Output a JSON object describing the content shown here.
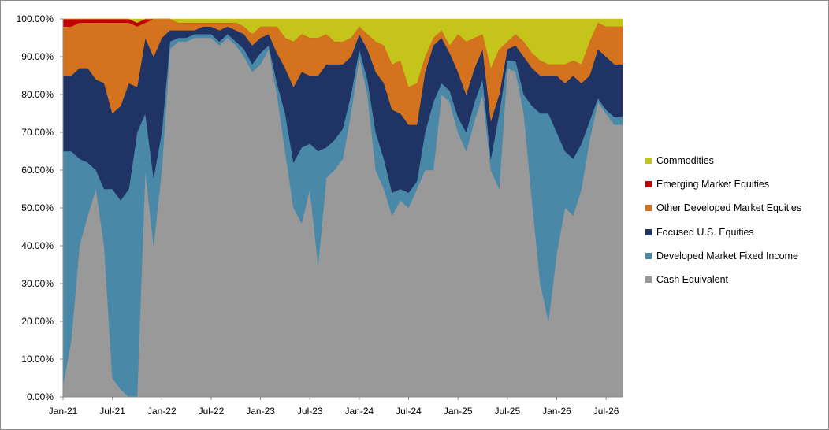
{
  "chart_data": {
    "type": "area",
    "stacked": true,
    "percent_axis": true,
    "ylim": [
      0,
      100
    ],
    "y_ticks": [
      0,
      10,
      20,
      30,
      40,
      50,
      60,
      70,
      80,
      90,
      100
    ],
    "y_tick_labels": [
      "0.00%",
      "10.00%",
      "20.00%",
      "30.00%",
      "40.00%",
      "50.00%",
      "60.00%",
      "70.00%",
      "80.00%",
      "90.00%",
      "100.00%"
    ],
    "x_tick_labels": [
      "Jan-21",
      "Jul-21",
      "Jan-22",
      "Jul-22",
      "Jan-23",
      "Jul-23",
      "Jan-24",
      "Jul-24",
      "Jan-25",
      "Jul-25",
      "Jan-26",
      "Jul-26"
    ],
    "x_start": "2021-01",
    "x_end": "2026-09",
    "x": [
      "2021-01",
      "2021-02",
      "2021-03",
      "2021-04",
      "2021-05",
      "2021-06",
      "2021-07",
      "2021-08",
      "2021-09",
      "2021-10",
      "2021-11",
      "2021-12",
      "2022-01",
      "2022-02",
      "2022-03",
      "2022-04",
      "2022-05",
      "2022-06",
      "2022-07",
      "2022-08",
      "2022-09",
      "2022-10",
      "2022-11",
      "2022-12",
      "2023-01",
      "2023-02",
      "2023-03",
      "2023-04",
      "2023-05",
      "2023-06",
      "2023-07",
      "2023-08",
      "2023-09",
      "2023-10",
      "2023-11",
      "2023-12",
      "2024-01",
      "2024-02",
      "2024-03",
      "2024-04",
      "2024-05",
      "2024-06",
      "2024-07",
      "2024-08",
      "2024-09",
      "2024-10",
      "2024-11",
      "2024-12",
      "2025-01",
      "2025-02",
      "2025-03",
      "2025-04",
      "2025-05",
      "2025-06",
      "2025-07",
      "2025-08",
      "2025-09",
      "2025-10",
      "2025-11",
      "2025-12",
      "2026-01",
      "2026-02",
      "2026-03",
      "2026-04",
      "2026-05",
      "2026-06",
      "2026-07",
      "2026-08",
      "2026-09"
    ],
    "legend_position": "right",
    "grid": false,
    "series": [
      {
        "name": "Cash Equivalent",
        "color": "#999999",
        "values": [
          3,
          15,
          40,
          48,
          55,
          40,
          5,
          2,
          0,
          0,
          60,
          40,
          60,
          92,
          94,
          94,
          95,
          95,
          95,
          93,
          95,
          93,
          90,
          86,
          88,
          92,
          80,
          65,
          50,
          46,
          55,
          35,
          58,
          60,
          63,
          75,
          90,
          80,
          60,
          55,
          48,
          52,
          50,
          55,
          60,
          60,
          80,
          78,
          70,
          65,
          73,
          80,
          60,
          55,
          87,
          86,
          75,
          52,
          30,
          20,
          38,
          50,
          48,
          55,
          68,
          78,
          75,
          72,
          72
        ]
      },
      {
        "name": "Developed Market Fixed Income",
        "color": "#4a88a8",
        "values": [
          62,
          50,
          23,
          14,
          5,
          15,
          50,
          50,
          55,
          70,
          15,
          18,
          10,
          2,
          1,
          1,
          1,
          1,
          1,
          1,
          1,
          1,
          2,
          2,
          3,
          1,
          3,
          10,
          12,
          20,
          12,
          30,
          8,
          8,
          8,
          5,
          2,
          4,
          10,
          8,
          6,
          3,
          4,
          2,
          10,
          18,
          3,
          3,
          4,
          5,
          5,
          4,
          3,
          20,
          2,
          3,
          5,
          25,
          45,
          55,
          32,
          15,
          15,
          12,
          5,
          1,
          1,
          2,
          2
        ]
      },
      {
        "name": "Focused U.S. Equities",
        "color": "#1f3465",
        "values": [
          20,
          20,
          24,
          25,
          24,
          28,
          20,
          25,
          28,
          12,
          20,
          32,
          25,
          3,
          2,
          2,
          1,
          2,
          2,
          3,
          2,
          3,
          4,
          5,
          4,
          3,
          8,
          12,
          20,
          20,
          18,
          20,
          22,
          20,
          17,
          10,
          4,
          8,
          16,
          20,
          22,
          20,
          18,
          15,
          16,
          15,
          12,
          10,
          12,
          10,
          9,
          8,
          10,
          5,
          3,
          4,
          10,
          10,
          10,
          10,
          15,
          18,
          22,
          16,
          12,
          13,
          14,
          14,
          14
        ]
      },
      {
        "name": "Other Developed Market Equities",
        "color": "#d4721e",
        "values": [
          13,
          13,
          12,
          12,
          15,
          16,
          24,
          22,
          16,
          16,
          4,
          10,
          5,
          3,
          2,
          2,
          2,
          1,
          1,
          2,
          1,
          2,
          2,
          3,
          3,
          2,
          7,
          8,
          12,
          10,
          10,
          10,
          8,
          6,
          6,
          5,
          2,
          4,
          8,
          10,
          12,
          14,
          10,
          11,
          4,
          2,
          2,
          2,
          10,
          14,
          8,
          4,
          14,
          12,
          2,
          3,
          4,
          4,
          4,
          3,
          3,
          5,
          4,
          5,
          9,
          7,
          8,
          10,
          10
        ]
      },
      {
        "name": "Emerging Market Equities",
        "color": "#c00000",
        "values": [
          2,
          2,
          1,
          1,
          1,
          1,
          1,
          1,
          1,
          1,
          1,
          0,
          0,
          0,
          0,
          0,
          0,
          0,
          0,
          0,
          0,
          0,
          0,
          0,
          0,
          0,
          0,
          0,
          0,
          0,
          0,
          0,
          0,
          0,
          0,
          0,
          0,
          0,
          0,
          0,
          0,
          0,
          0,
          0,
          0,
          0,
          0,
          0,
          0,
          0,
          0,
          0,
          0,
          0,
          0,
          0,
          0,
          0,
          0,
          0,
          0,
          0,
          0,
          0,
          0,
          0,
          0,
          0,
          0
        ]
      },
      {
        "name": "Commodities",
        "color": "#c4c41a",
        "values": [
          0,
          0,
          0,
          0,
          0,
          0,
          0,
          0,
          0,
          1,
          0,
          0,
          0,
          0,
          1,
          1,
          1,
          1,
          1,
          1,
          1,
          1,
          2,
          4,
          2,
          2,
          2,
          5,
          6,
          4,
          5,
          5,
          4,
          6,
          6,
          5,
          2,
          4,
          6,
          7,
          12,
          11,
          18,
          17,
          10,
          5,
          3,
          7,
          4,
          6,
          5,
          4,
          13,
          8,
          6,
          4,
          6,
          9,
          11,
          12,
          12,
          12,
          11,
          12,
          6,
          1,
          2,
          2,
          2
        ]
      }
    ],
    "legend_order": [
      "Commodities",
      "Emerging Market Equities",
      "Other Developed Market Equities",
      "Focused U.S. Equities",
      "Developed Market Fixed Income",
      "Cash Equivalent"
    ]
  }
}
